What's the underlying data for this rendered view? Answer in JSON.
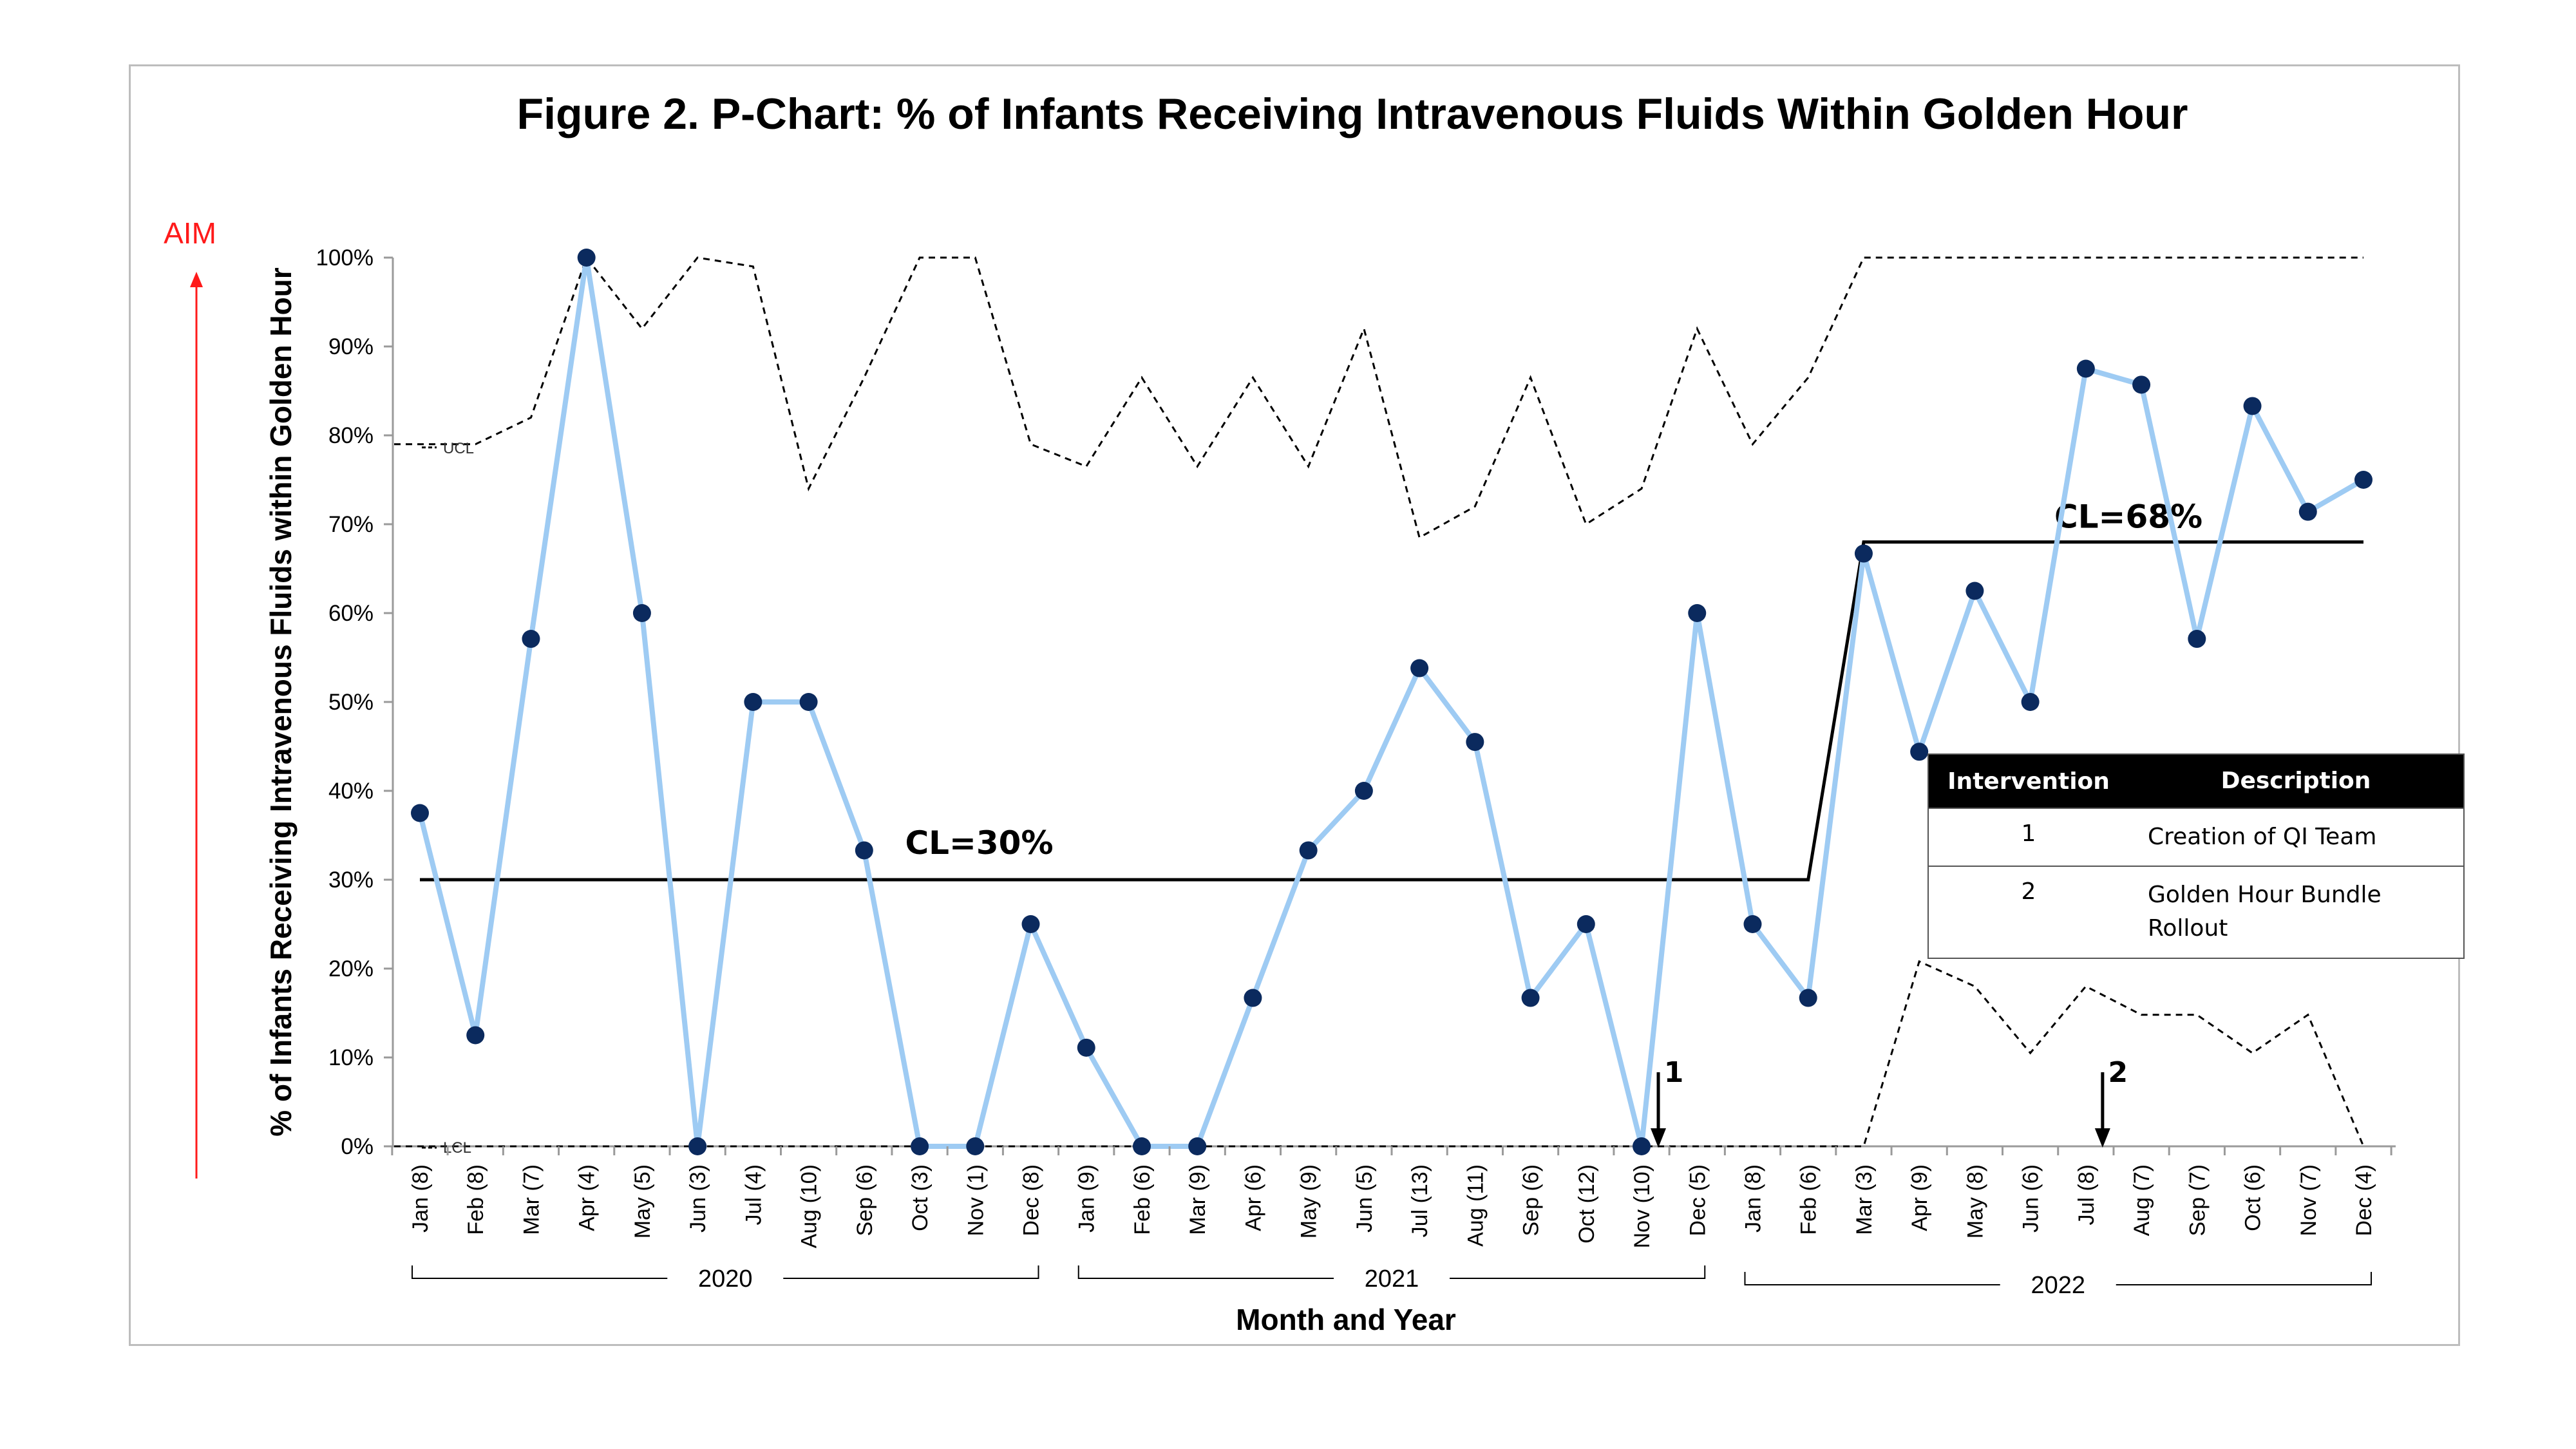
{
  "chart_data": {
    "type": "line",
    "title": "Figure 2. P-Chart: % of Infants Receiving Intravenous Fluids Within Golden Hour",
    "xlabel": "Month and Year",
    "ylabel": "% of Infants Receiving Intravenous Fluids within Golden Hour",
    "aim_label": "AIM",
    "ucl_label": "UCL",
    "lcl_label": "LCL",
    "ylim": [
      0,
      100
    ],
    "yticks": [
      "0%",
      "10%",
      "20%",
      "30%",
      "40%",
      "50%",
      "60%",
      "70%",
      "80%",
      "90%",
      "100%"
    ],
    "categories": [
      "Jan (8)",
      "Feb (8)",
      "Mar (7)",
      "Apr (4)",
      "May (5)",
      "Jun (3)",
      "Jul (4)",
      "Aug (10)",
      "Sep (6)",
      "Oct (3)",
      "Nov (1)",
      "Dec (8)",
      "Jan (9)",
      "Feb (6)",
      "Mar (9)",
      "Apr (6)",
      "May (9)",
      "Jun (5)",
      "Jul (13)",
      "Aug (11)",
      "Sep (6)",
      "Oct (12)",
      "Nov (10)",
      "Dec (5)",
      "Jan (8)",
      "Feb (6)",
      "Mar (3)",
      "Apr (9)",
      "May (8)",
      "Jun (6)",
      "Jul (8)",
      "Aug (7)",
      "Sep (7)",
      "Oct (6)",
      "Nov (7)",
      "Dec (4)"
    ],
    "years": [
      {
        "label": "2020",
        "start": 0,
        "end": 11
      },
      {
        "label": "2021",
        "start": 12,
        "end": 23
      },
      {
        "label": "2022",
        "start": 24,
        "end": 35
      }
    ],
    "percent": [
      37.5,
      12.5,
      57.1,
      100,
      60,
      0,
      50,
      50,
      33.3,
      0,
      0,
      25,
      11.1,
      0,
      0,
      16.7,
      33.3,
      40,
      53.8,
      45.5,
      16.7,
      25,
      0,
      60,
      25,
      16.7,
      66.7,
      44.4,
      62.5,
      50,
      87.5,
      85.7,
      57.1,
      83.3,
      71.4,
      75
    ],
    "ucl": [
      79,
      79,
      82,
      100,
      92,
      100,
      99,
      74,
      86.5,
      100,
      100,
      79,
      76.5,
      86.5,
      76.5,
      86.5,
      76.5,
      92,
      68.5,
      72,
      86.5,
      70,
      74,
      92,
      79,
      86.5,
      100,
      100,
      100,
      100,
      100,
      100,
      100,
      100,
      100,
      100
    ],
    "lcl": [
      0,
      0,
      0,
      0,
      0,
      0,
      0,
      0,
      0,
      0,
      0,
      0,
      0,
      0,
      0,
      0,
      0,
      0,
      0,
      0,
      0,
      0,
      0,
      0,
      0,
      0,
      0,
      20.8,
      18,
      10.5,
      18,
      14.8,
      14.8,
      10.5,
      14.8,
      0
    ],
    "center_lines": [
      {
        "label": "CL=30%",
        "value": 30,
        "start": 0,
        "end": 25
      },
      {
        "label": "CL=68%",
        "value": 68,
        "start": 26,
        "end": 35
      }
    ],
    "annotations": [
      {
        "label": "1",
        "index": 22
      },
      {
        "label": "2",
        "index": 30
      }
    ],
    "colors": {
      "line": "#9ecbf3",
      "marker": "#0b2a5e",
      "limits": "#000000",
      "aim": "#ff1a1a"
    }
  },
  "legend": {
    "headers": [
      "Intervention",
      "Description"
    ],
    "rows": [
      {
        "num": "1",
        "desc": "Creation of QI Team"
      },
      {
        "num": "2",
        "desc": "Golden Hour Bundle Rollout"
      }
    ]
  }
}
